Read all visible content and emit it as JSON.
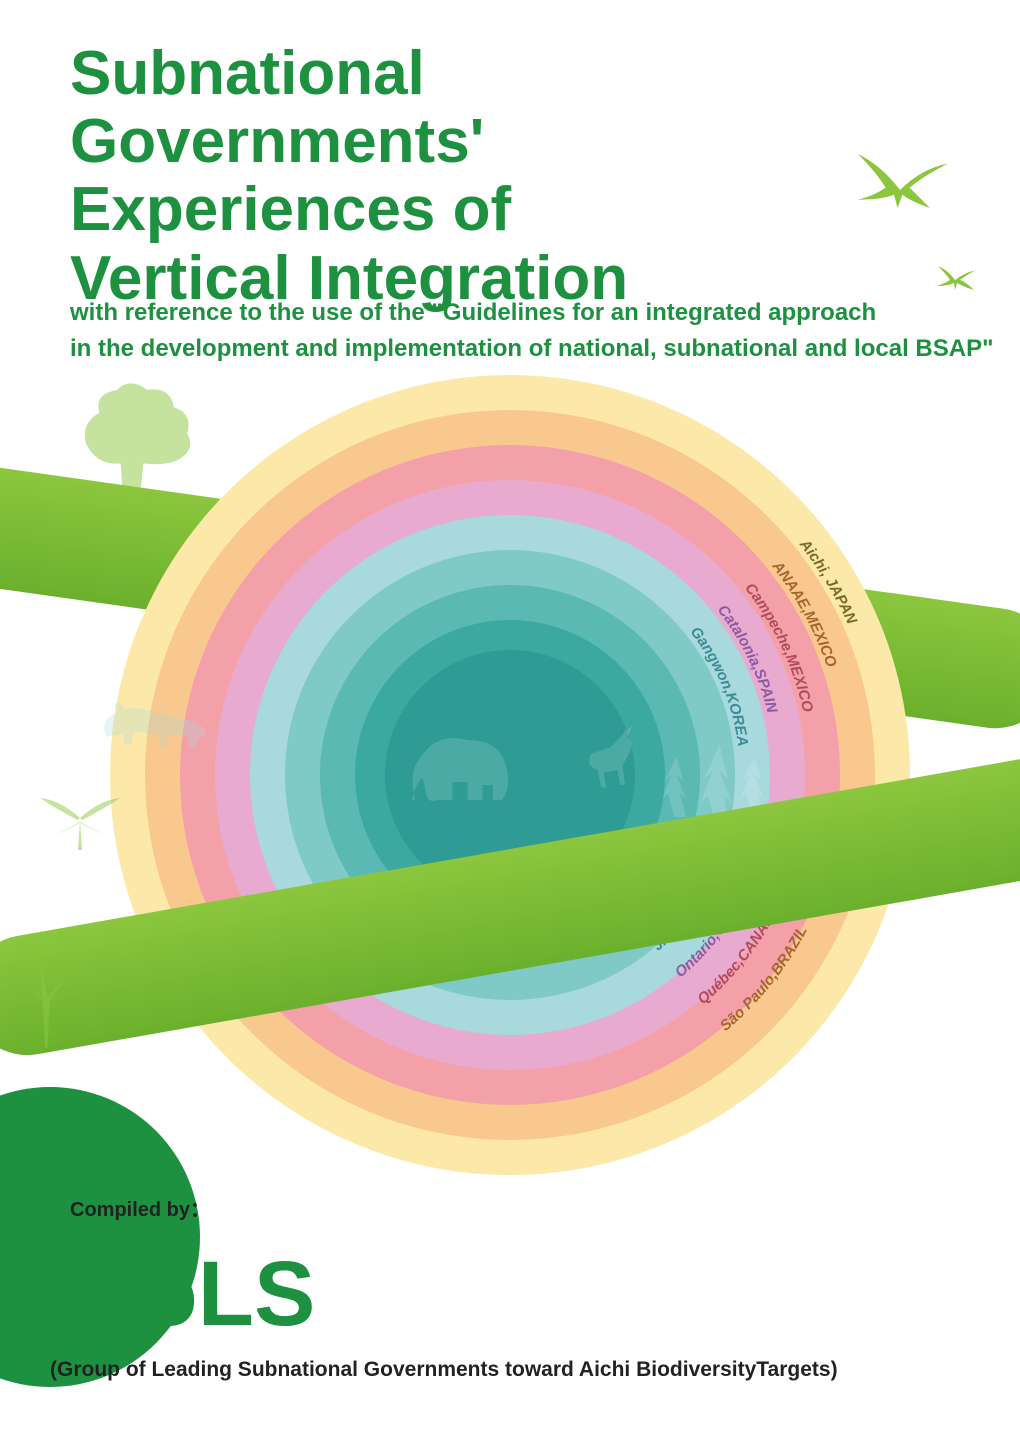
{
  "colors": {
    "title_green": "#1d9140",
    "subtitle_green": "#1d9140",
    "ribbon": "#8cc63f",
    "ribbon_dark": "#6bb02c",
    "gols": "#1d9140",
    "bird": "#8cc63f"
  },
  "title": "Subnational\nGovernments'\nExperiences of\nVertical Integration",
  "subtitle": "with reference to the use of  the \"Guidelines for an integrated approach\nin the development and implementation of national, subnational and local BSAP\"",
  "compiled_by": "Compiled by：",
  "logo": "GoLS",
  "logo_subtitle": "(Group of Leading Subnational Governments toward Aichi BiodiversityTargets)",
  "rings": [
    {
      "size": 800,
      "color": "#fce9a9"
    },
    {
      "size": 730,
      "color": "#f9c88e"
    },
    {
      "size": 660,
      "color": "#f4a0a8"
    },
    {
      "size": 590,
      "color": "#e9aad0"
    },
    {
      "size": 520,
      "color": "#a7d9dd"
    },
    {
      "size": 450,
      "color": "#7fc9c7"
    },
    {
      "size": 380,
      "color": "#5bb9b4"
    },
    {
      "size": 310,
      "color": "#3ba99f"
    },
    {
      "size": 250,
      "color": "#2e9c94"
    }
  ],
  "arc_labels_top": [
    {
      "text": "Aichi, JAPAN",
      "radius": 370,
      "color": "#7a6a2a"
    },
    {
      "text": "ANAAE,MEXICO",
      "radius": 335,
      "color": "#a66530"
    },
    {
      "text": "Campeche,MEXICO",
      "radius": 300,
      "color": "#b24a5d"
    },
    {
      "text": "Catalonia,SPAIN",
      "radius": 265,
      "color": "#8a5ba0"
    },
    {
      "text": "Gangwon,KOREA",
      "radius": 230,
      "color": "#3e8a97"
    }
  ],
  "arc_labels_bottom": [
    {
      "text": "Jiangsu,CHINA",
      "radius": 230,
      "color": "#3e8a97"
    },
    {
      "text": "Ontario,CANADA",
      "radius": 265,
      "color": "#8a5ba0"
    },
    {
      "text": "Québec,CANADA",
      "radius": 300,
      "color": "#b24a5d"
    },
    {
      "text": "São Paulo,BRAZIL",
      "radius": 335,
      "color": "#a66530"
    }
  ]
}
